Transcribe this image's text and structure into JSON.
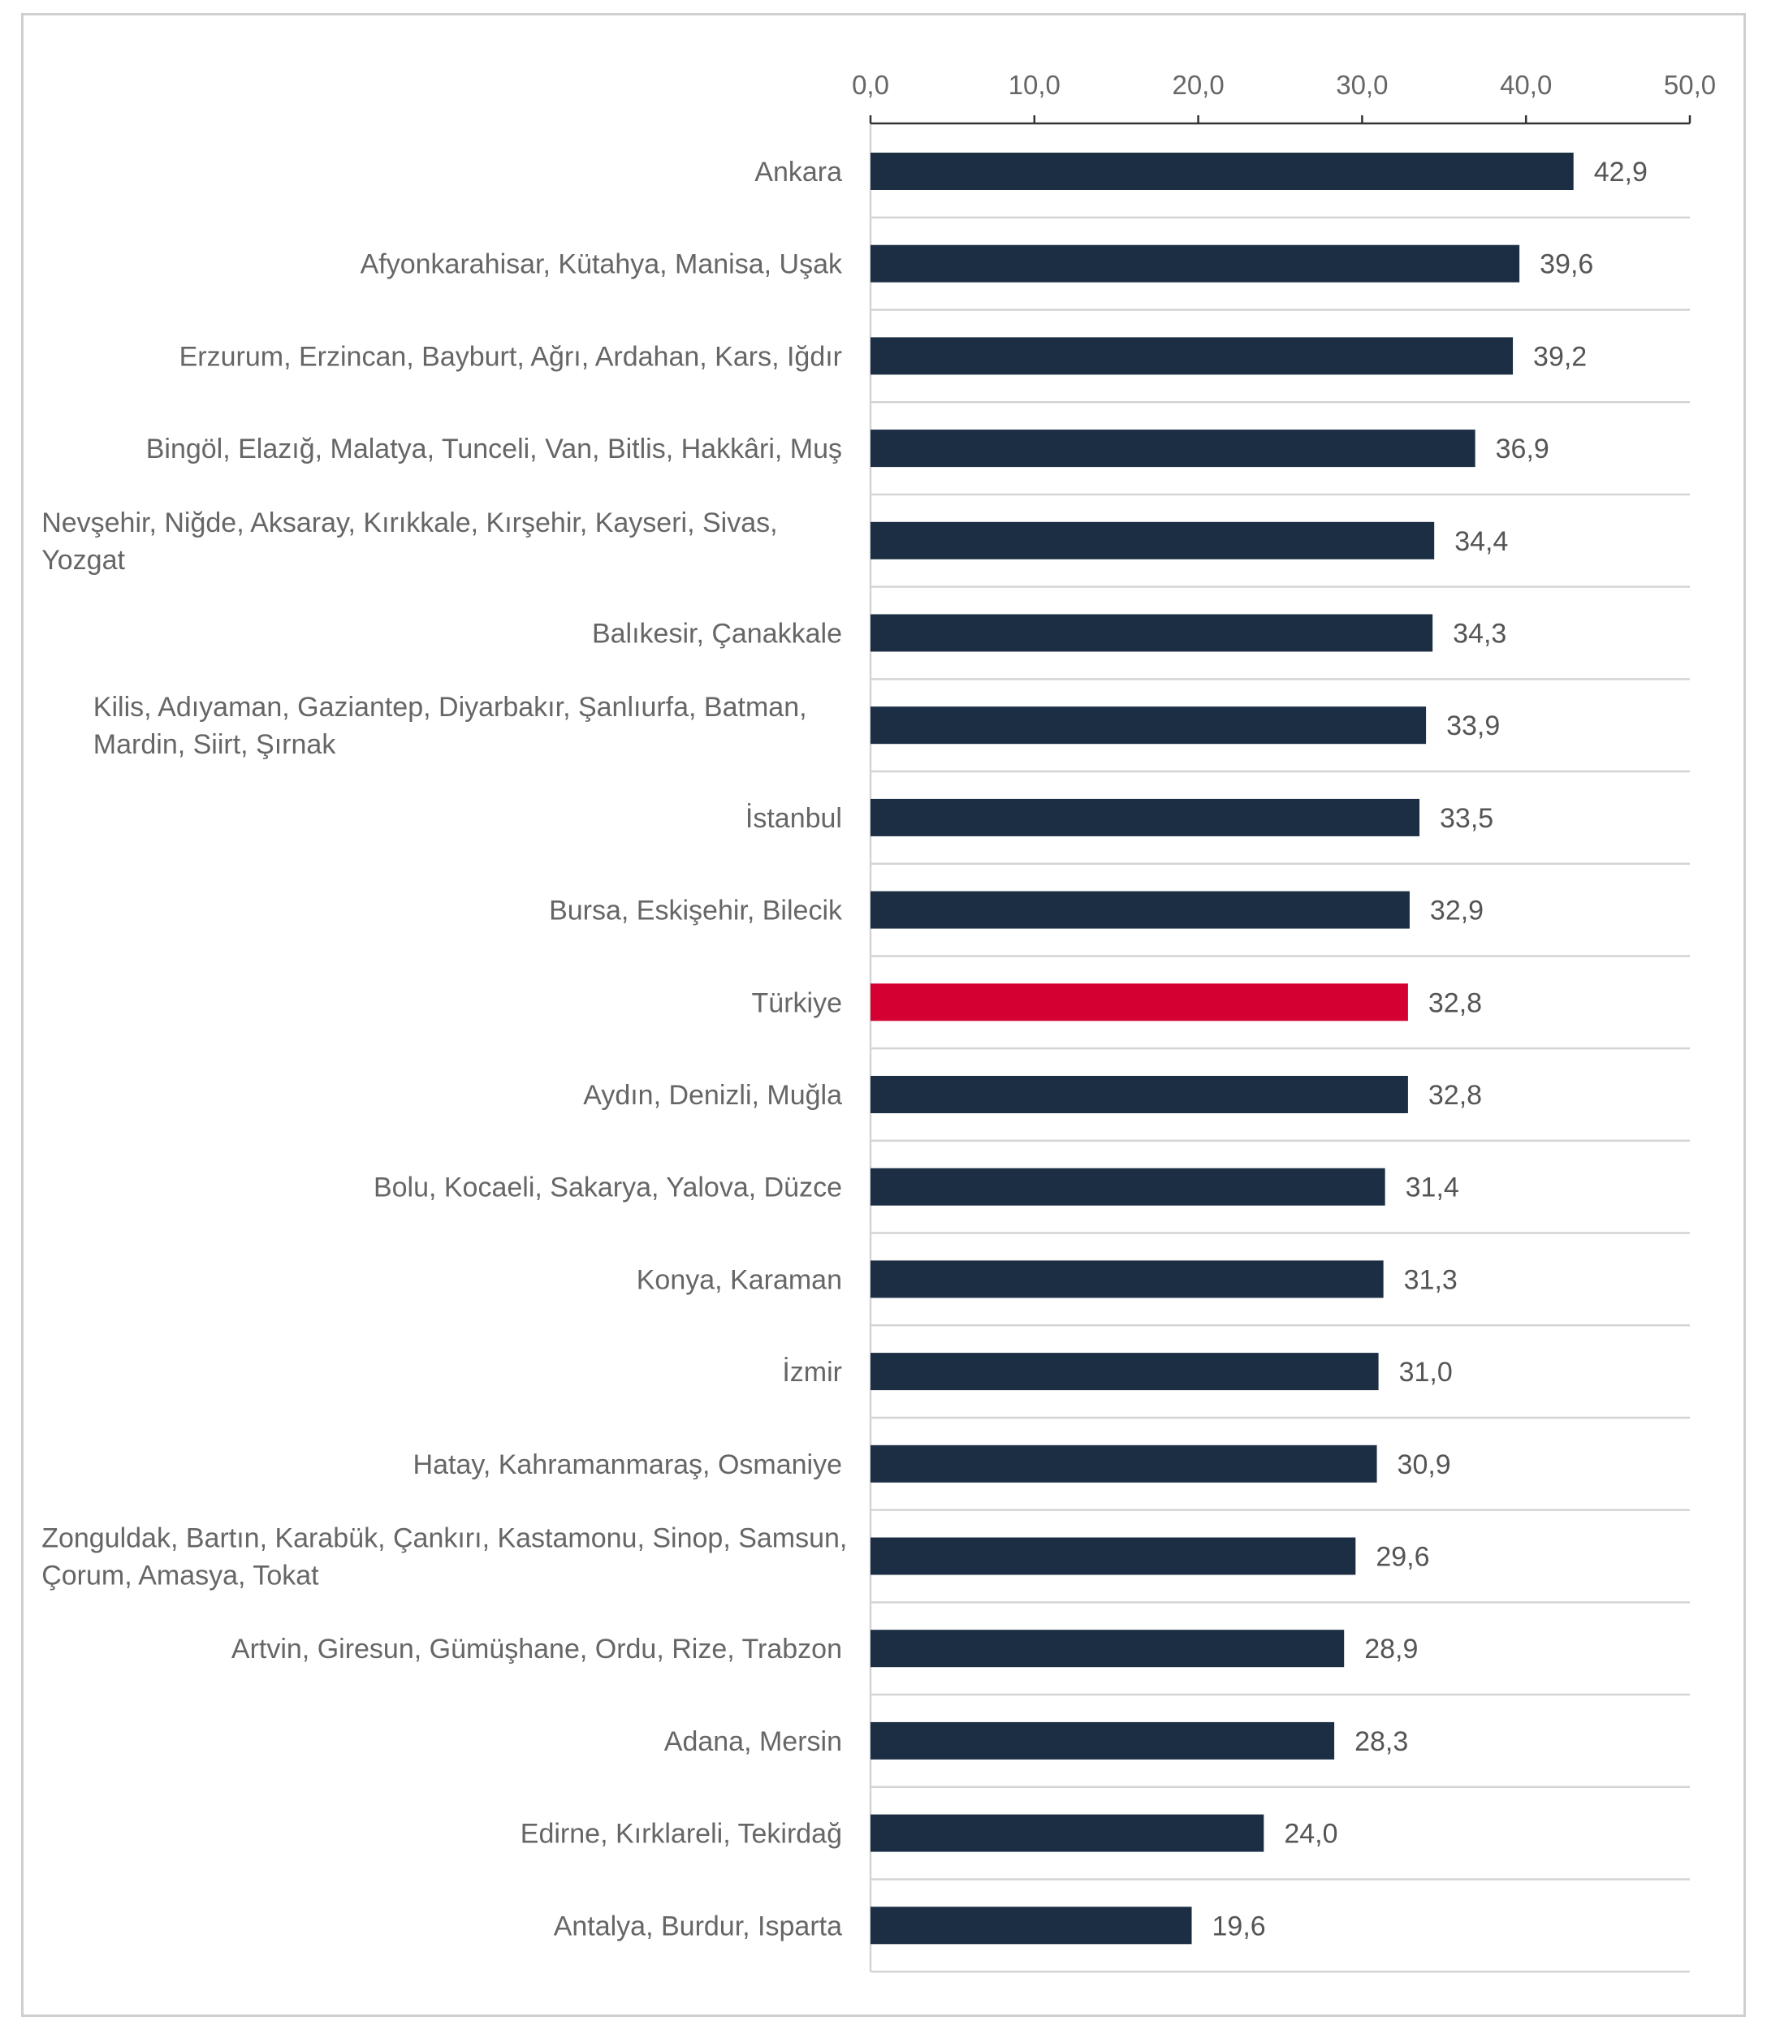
{
  "chart_data": {
    "type": "bar",
    "orientation": "horizontal",
    "categories": [
      "Ankara",
      "Afyonkarahisar, Kütahya, Manisa, Uşak",
      "Erzurum, Erzincan, Bayburt, Ağrı, Ardahan, Kars, Iğdır",
      "Bingöl, Elazığ, Malatya, Tunceli, Van, Bitlis, Hakkâri, Muş",
      "Nevşehir, Niğde, Aksaray, Kırıkkale, Kırşehir, Kayseri, Sivas, Yozgat",
      "Balıkesir, Çanakkale",
      "Kilis, Adıyaman, Gaziantep, Diyarbakır, Şanlıurfa, Batman, Mardin, Siirt, Şırnak",
      "İstanbul",
      "Bursa, Eskişehir, Bilecik",
      "Türkiye",
      "Aydın, Denizli, Muğla",
      "Bolu, Kocaeli, Sakarya, Yalova, Düzce",
      "Konya, Karaman",
      "İzmir",
      "Hatay, Kahramanmaraş, Osmaniye",
      "Zonguldak, Bartın, Karabük, Çankırı, Kastamonu, Sinop, Samsun, Çorum, Amasya, Tokat",
      "Artvin, Giresun, Gümüşhane, Ordu, Rize, Trabzon",
      "Adana, Mersin",
      "Edirne, Kırklareli, Tekirdağ",
      "Antalya, Burdur, Isparta"
    ],
    "category_lines": [
      [
        "Ankara"
      ],
      [
        "Afyonkarahisar, Kütahya, Manisa, Uşak"
      ],
      [
        "Erzurum, Erzincan, Bayburt, Ağrı, Ardahan, Kars, Iğdır"
      ],
      [
        "Bingöl, Elazığ, Malatya, Tunceli, Van, Bitlis, Hakkâri, Muş"
      ],
      [
        "Nevşehir, Niğde, Aksaray, Kırıkkale, Kırşehir, Kayseri, Sivas,",
        "Yozgat"
      ],
      [
        "Balıkesir, Çanakkale"
      ],
      [
        "Kilis, Adıyaman, Gaziantep, Diyarbakır, Şanlıurfa, Batman,",
        "Mardin, Siirt, Şırnak"
      ],
      [
        "İstanbul"
      ],
      [
        "Bursa, Eskişehir, Bilecik"
      ],
      [
        "Türkiye"
      ],
      [
        "Aydın, Denizli, Muğla"
      ],
      [
        "Bolu, Kocaeli, Sakarya, Yalova, Düzce"
      ],
      [
        "Konya, Karaman"
      ],
      [
        "İzmir"
      ],
      [
        "Hatay, Kahramanmaraş, Osmaniye"
      ],
      [
        "Zonguldak, Bartın, Karabük, Çankırı, Kastamonu, Sinop, Samsun,",
        "Çorum, Amasya, Tokat"
      ],
      [
        "Artvin, Giresun, Gümüşhane, Ordu, Rize, Trabzon"
      ],
      [
        "Adana, Mersin"
      ],
      [
        "Edirne, Kırklareli, Tekirdağ"
      ],
      [
        "Antalya, Burdur, Isparta"
      ]
    ],
    "values": [
      42.9,
      39.6,
      39.2,
      36.9,
      34.4,
      34.3,
      33.9,
      33.5,
      32.9,
      32.8,
      32.8,
      31.4,
      31.3,
      31.0,
      30.9,
      29.6,
      28.9,
      28.3,
      24.0,
      19.6
    ],
    "value_labels": [
      "42,9",
      "39,6",
      "39,2",
      "36,9",
      "34,4",
      "34,3",
      "33,9",
      "33,5",
      "32,9",
      "32,8",
      "32,8",
      "31,4",
      "31,3",
      "31,0",
      "30,9",
      "29,6",
      "28,9",
      "28,3",
      "24,0",
      "19,6"
    ],
    "highlight_category": "Türkiye",
    "xlim": [
      0,
      50
    ],
    "x_ticks": [
      0,
      10,
      20,
      30,
      40,
      50
    ],
    "x_tick_labels": [
      "0,0",
      "10,0",
      "20,0",
      "30,0",
      "40,0",
      "50,0"
    ],
    "axis_position": "top",
    "grid": "horizontal separators between categories",
    "legend": "none",
    "title": "",
    "xlabel": "",
    "ylabel": "",
    "colors": {
      "bar": "#1c2e44",
      "highlight": "#d40032",
      "grid": "#d4d4d4",
      "axis": "#333333",
      "text": "#666666",
      "frame": "#cfcfcf"
    }
  }
}
